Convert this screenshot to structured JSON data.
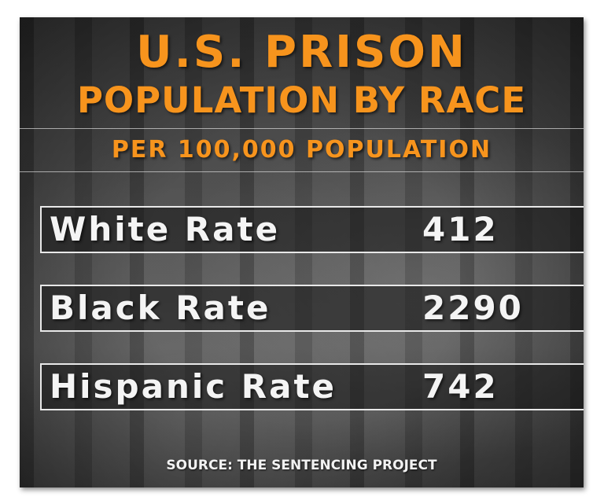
{
  "title_line1": "U.S. PRISON",
  "title_line2": "POPULATION BY RACE",
  "subtitle": "PER 100,000 POPULATION",
  "rows": [
    {
      "label": "White Rate",
      "value": "412"
    },
    {
      "label": "Black Rate",
      "value": "2290"
    },
    {
      "label": "Hispanic Rate",
      "value": "742"
    }
  ],
  "source": "SOURCE: THE SENTENCING PROJECT",
  "colors": {
    "title": "#f7941d",
    "row_text": "#f4f4f4",
    "row_border": "#e8e8e8",
    "background": "#4a4a4a"
  }
}
